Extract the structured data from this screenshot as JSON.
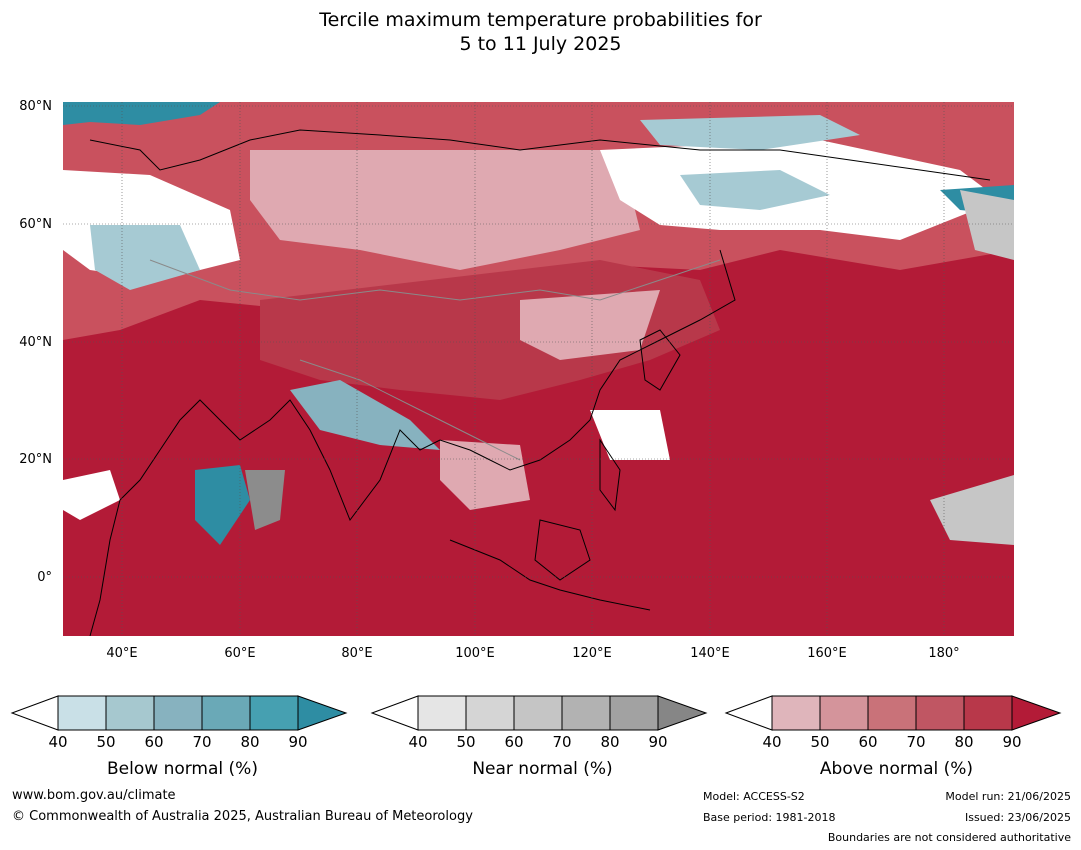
{
  "title": {
    "line1": "Tercile maximum temperature probabilities for",
    "line2": "5 to 11 July 2025"
  },
  "map": {
    "lat_labels": [
      "80°N",
      "60°N",
      "40°N",
      "20°N",
      "0°"
    ],
    "lon_labels": [
      "40°E",
      "60°E",
      "80°E",
      "100°E",
      "120°E",
      "140°E",
      "160°E",
      "180°"
    ],
    "dominant_category": "Above normal",
    "colors": {
      "above_max": "#b31b37",
      "above_mid": "#c9515e",
      "above_low": "#dfa9b1",
      "below": "#a6cad3",
      "below_high": "#2e8da3",
      "near": "#c6c6c6",
      "near_high": "#8c8c8c",
      "coast": "#000000",
      "border": "#8a8a8a"
    }
  },
  "colorbars": [
    {
      "label": "Below normal (%)",
      "ticks": [
        "40",
        "50",
        "60",
        "70",
        "80",
        "90"
      ],
      "colors": [
        "#c9e0e7",
        "#a6c8cf",
        "#87b2bf",
        "#6aa9b7",
        "#46a0b1",
        "#2e8da3"
      ]
    },
    {
      "label": "Near normal (%)",
      "ticks": [
        "40",
        "50",
        "60",
        "70",
        "80",
        "90"
      ],
      "colors": [
        "#e5e5e5",
        "#d5d5d5",
        "#c5c5c5",
        "#b2b2b2",
        "#a2a2a2",
        "#868686"
      ]
    },
    {
      "label": "Above normal (%)",
      "ticks": [
        "40",
        "50",
        "60",
        "70",
        "80",
        "90"
      ],
      "colors": [
        "#dfb5bb",
        "#d4949b",
        "#c97279",
        "#c05663",
        "#b8384a",
        "#b31b37"
      ]
    }
  ],
  "footer": {
    "website": "www.bom.gov.au/climate",
    "copyright": "© Commonwealth of Australia 2025, Australian Bureau of Meteorology",
    "model": "Model: ACCESS-S2",
    "base_period": "Base period: 1981-2018",
    "model_run": "Model run: 21/06/2025",
    "issued": "Issued: 23/06/2025",
    "disclaimer": "Boundaries are not considered authoritative"
  }
}
